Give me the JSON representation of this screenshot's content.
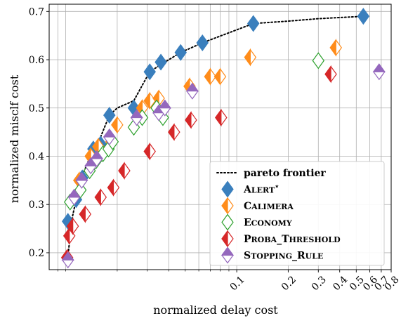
{
  "chart_data": {
    "type": "scatter",
    "xlabel": "normalized delay cost",
    "ylabel": "normalized misclf cost",
    "xscale": "log",
    "xlim": [
      0.008,
      0.8
    ],
    "ylim": [
      0.165,
      0.715
    ],
    "grid": true,
    "legend_position": "bottom-right",
    "x_major_ticks": [
      0.1,
      0.2,
      0.3,
      0.4,
      0.5,
      0.6,
      0.7,
      0.8
    ],
    "x_tick_labels": [
      "0.1",
      "0.2",
      "0.3",
      "0.4",
      "0.5",
      "0.6",
      "0.7",
      "0.8"
    ],
    "x_minor_gridlines": [
      0.009,
      0.01,
      0.02,
      0.03,
      0.04,
      0.05,
      0.06,
      0.07,
      0.08,
      0.09
    ],
    "y_ticks": [
      0.2,
      0.3,
      0.4,
      0.5,
      0.6,
      0.7
    ],
    "y_tick_labels": [
      "0.2",
      "0.3",
      "0.4",
      "0.5",
      "0.6",
      "0.7"
    ],
    "pareto_frontier": {
      "name": "pareto frontier",
      "x": [
        0.0103,
        0.0108,
        0.0115,
        0.0125,
        0.0145,
        0.016,
        0.018,
        0.02,
        0.025,
        0.031,
        0.036,
        0.047,
        0.063,
        0.125,
        0.2,
        0.3,
        0.55
      ],
      "y": [
        0.19,
        0.265,
        0.31,
        0.36,
        0.415,
        0.44,
        0.485,
        0.5,
        0.515,
        0.575,
        0.59,
        0.615,
        0.635,
        0.675,
        0.68,
        0.685,
        0.69
      ]
    },
    "series": [
      {
        "name": "Alert",
        "superscript": "⋆",
        "color": "#3a7fbd",
        "filled": "full",
        "x": [
          0.0103,
          0.0115,
          0.0125,
          0.0145,
          0.016,
          0.018,
          0.025,
          0.031,
          0.036,
          0.047,
          0.063,
          0.125,
          0.55
        ],
        "y": [
          0.265,
          0.31,
          0.355,
          0.415,
          0.425,
          0.485,
          0.5,
          0.575,
          0.595,
          0.615,
          0.635,
          0.675,
          0.69
        ]
      },
      {
        "name": "Calimera",
        "color": "#ff8c1a",
        "filled": "left",
        "x": [
          0.012,
          0.014,
          0.0155,
          0.0185,
          0.02,
          0.028,
          0.031,
          0.035,
          0.053,
          0.07,
          0.08,
          0.12,
          0.38
        ],
        "y": [
          0.35,
          0.4,
          0.42,
          0.43,
          0.465,
          0.5,
          0.515,
          0.52,
          0.545,
          0.565,
          0.565,
          0.605,
          0.625
        ]
      },
      {
        "name": "Economy",
        "color": "#2ca02c",
        "filled": "none",
        "x": [
          0.0106,
          0.0122,
          0.0138,
          0.015,
          0.0165,
          0.0178,
          0.0188,
          0.025,
          0.028,
          0.034,
          0.037,
          0.3
        ],
        "y": [
          0.305,
          0.33,
          0.37,
          0.39,
          0.405,
          0.415,
          0.43,
          0.46,
          0.48,
          0.5,
          0.48,
          0.598
        ]
      },
      {
        "name": "Proba_Threshold",
        "color": "#d62728",
        "filled": "left",
        "x": [
          0.0102,
          0.0105,
          0.011,
          0.013,
          0.016,
          0.019,
          0.022,
          0.031,
          0.043,
          0.054,
          0.081,
          0.355
        ],
        "y": [
          0.19,
          0.235,
          0.255,
          0.28,
          0.315,
          0.335,
          0.37,
          0.41,
          0.45,
          0.475,
          0.48,
          0.57
        ]
      },
      {
        "name": "Stopping_Rule",
        "color": "#9467bd",
        "filled": "top",
        "x": [
          0.0103,
          0.0112,
          0.0124,
          0.014,
          0.0152,
          0.018,
          0.026,
          0.035,
          0.038,
          0.055,
          0.68
        ],
        "y": [
          0.185,
          0.315,
          0.35,
          0.38,
          0.395,
          0.44,
          0.48,
          0.49,
          0.5,
          0.535,
          0.575
        ]
      }
    ]
  }
}
